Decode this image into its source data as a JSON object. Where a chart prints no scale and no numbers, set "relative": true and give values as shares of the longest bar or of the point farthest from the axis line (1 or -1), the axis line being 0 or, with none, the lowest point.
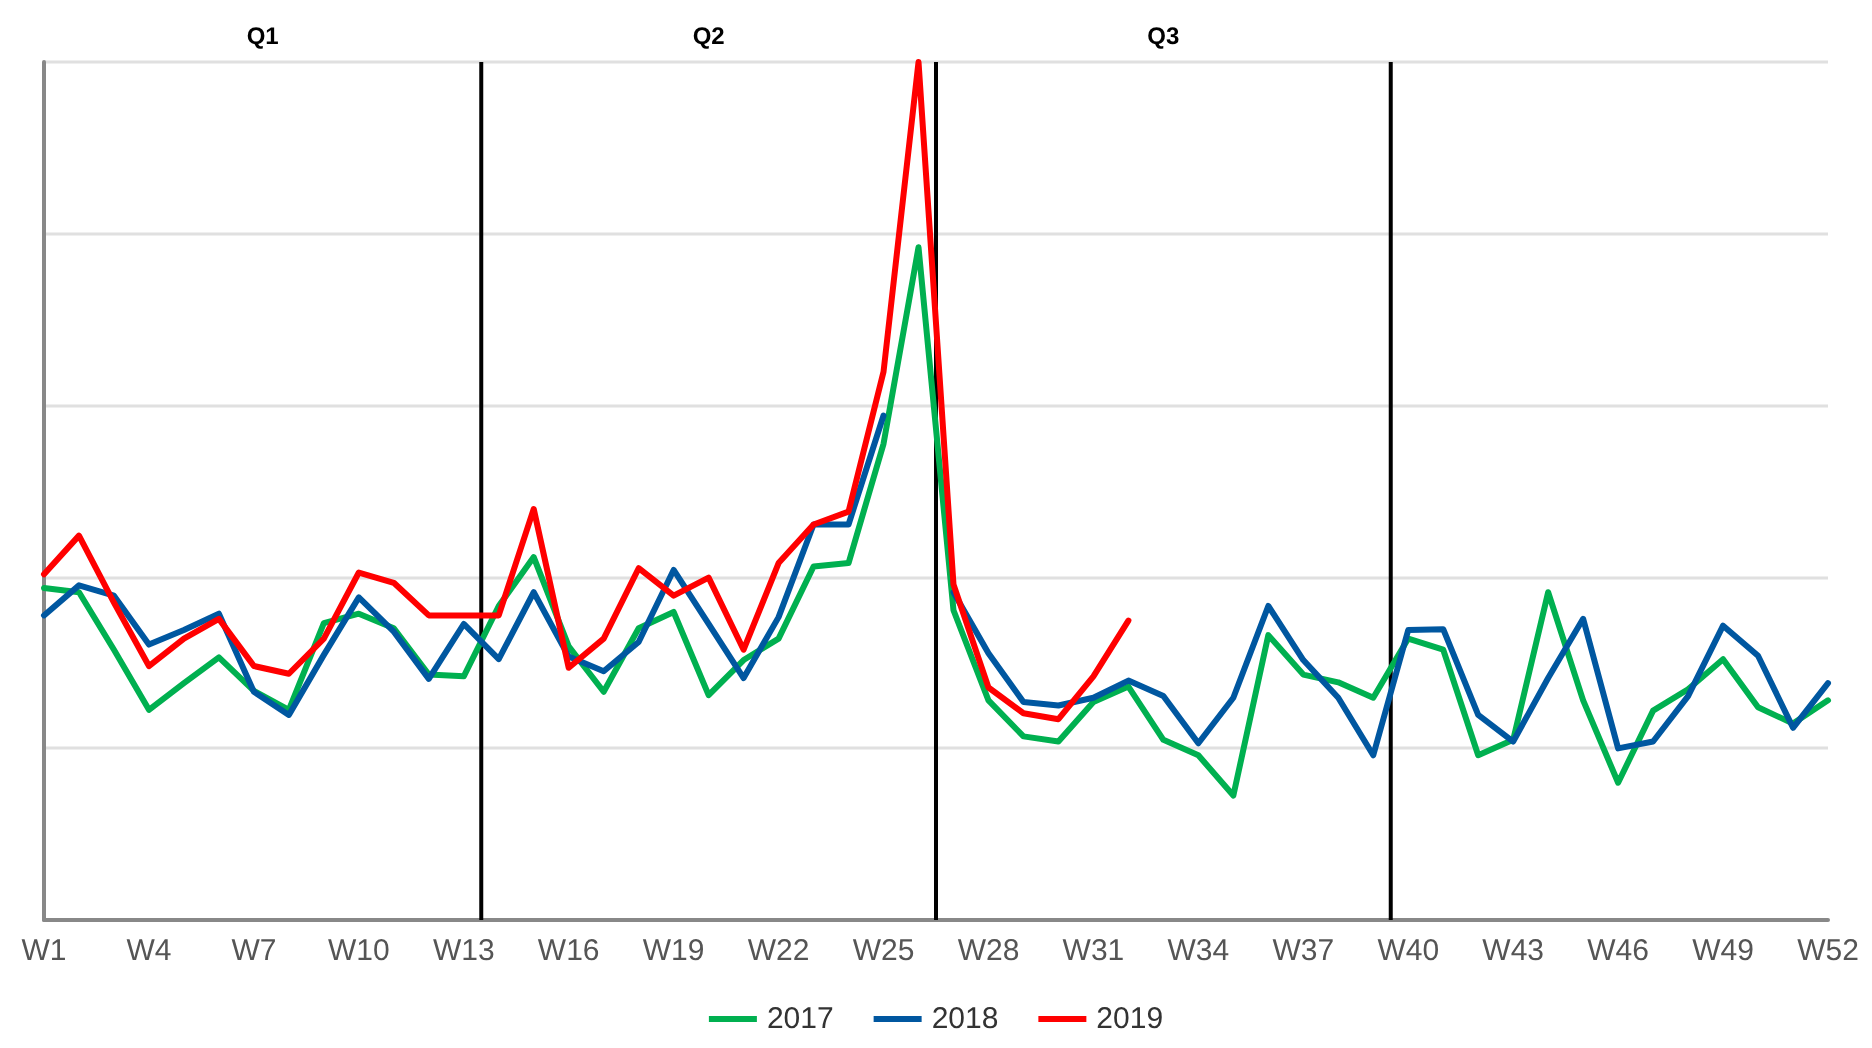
{
  "chart_data": {
    "type": "line",
    "relative": true,
    "legend": "bottom",
    "grid": "y",
    "marker": "none",
    "line_style": "solid",
    "categories": [
      "W1",
      null,
      null,
      "W4",
      null,
      null,
      "W7",
      null,
      null,
      "W10",
      null,
      null,
      "W13",
      null,
      null,
      "W16",
      null,
      null,
      "W19",
      null,
      null,
      "W22",
      null,
      null,
      "W25",
      null,
      null,
      "W28",
      null,
      null,
      "W31",
      null,
      null,
      "W34",
      null,
      null,
      "W37",
      null,
      null,
      "W40",
      null,
      null,
      "W43",
      null,
      null,
      "W46",
      null,
      null,
      "W49",
      null,
      null,
      "W52"
    ],
    "annotations": [
      "Q1",
      "Q2",
      "Q3"
    ],
    "series": [
      {
        "name": "2017",
        "color": "#00b050",
        "values": [
          0.387,
          0.382,
          0.315,
          0.245,
          0.276,
          0.306,
          0.267,
          0.245,
          0.346,
          0.357,
          0.34,
          0.286,
          0.284,
          0.366,
          0.423,
          0.319,
          0.266,
          0.34,
          0.359,
          0.262,
          0.303,
          0.328,
          0.412,
          0.416,
          0.555,
          0.784,
          0.361,
          0.256,
          0.214,
          0.208,
          0.254,
          0.272,
          0.21,
          0.192,
          0.145,
          0.332,
          0.286,
          0.277,
          0.259,
          0.328,
          0.315,
          0.192,
          0.21,
          0.382,
          0.256,
          0.16,
          0.244,
          0.269,
          0.304,
          0.248,
          0.229,
          0.256
        ]
      },
      {
        "name": "2018",
        "color": "#0057a0",
        "values": [
          0.355,
          0.39,
          0.378,
          0.321,
          0.338,
          0.357,
          0.266,
          0.239,
          0.309,
          0.376,
          0.336,
          0.281,
          0.345,
          0.304,
          0.382,
          0.307,
          0.29,
          0.324,
          0.408,
          0.345,
          0.282,
          0.353,
          0.461,
          0.461,
          0.588,
          null,
          0.382,
          0.311,
          0.254,
          0.25,
          0.259,
          0.279,
          0.261,
          0.206,
          0.259,
          0.366,
          0.303,
          0.259,
          0.192,
          0.338,
          0.339,
          0.239,
          0.208,
          0.282,
          0.351,
          0.2,
          0.208,
          0.261,
          0.343,
          0.308,
          0.224,
          0.276
        ]
      },
      {
        "name": "2019",
        "color": "#ff0000",
        "values": [
          0.403,
          0.448,
          0.37,
          0.296,
          0.328,
          0.351,
          0.296,
          0.287,
          0.328,
          0.405,
          0.393,
          0.355,
          0.355,
          0.355,
          0.479,
          0.294,
          0.328,
          0.41,
          0.378,
          0.399,
          0.315,
          0.416,
          0.461,
          0.476,
          0.639,
          1,
          0.391,
          0.271,
          0.241,
          0.234,
          0.284,
          0.349,
          null,
          null,
          null,
          null,
          null,
          null,
          null,
          null,
          null,
          null,
          null,
          null,
          null,
          null,
          null,
          null,
          null,
          null,
          null,
          null
        ]
      }
    ]
  }
}
